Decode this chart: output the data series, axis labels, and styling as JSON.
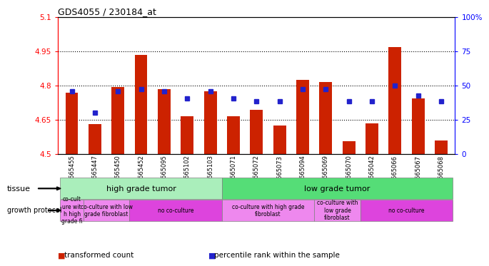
{
  "title": "GDS4055 / 230184_at",
  "samples": [
    "GSM665455",
    "GSM665447",
    "GSM665450",
    "GSM665452",
    "GSM665095",
    "GSM665102",
    "GSM665103",
    "GSM665071",
    "GSM665072",
    "GSM665073",
    "GSM665094",
    "GSM665069",
    "GSM665070",
    "GSM665042",
    "GSM665066",
    "GSM665067",
    "GSM665068"
  ],
  "bar_values": [
    4.77,
    4.63,
    4.795,
    4.935,
    4.785,
    4.665,
    4.775,
    4.665,
    4.695,
    4.625,
    4.825,
    4.815,
    4.555,
    4.635,
    4.97,
    4.745,
    4.56
  ],
  "blue_values": [
    4.775,
    4.68,
    4.775,
    4.785,
    4.775,
    4.745,
    4.775,
    4.745,
    4.73,
    4.73,
    4.785,
    4.785,
    4.73,
    4.73,
    4.8,
    4.755,
    4.73
  ],
  "ymin": 4.5,
  "ymax": 5.1,
  "yticks_left": [
    4.5,
    4.65,
    4.8,
    4.95,
    5.1
  ],
  "yticks_right": [
    0,
    25,
    50,
    75,
    100
  ],
  "bar_color": "#cc2200",
  "blue_color": "#2222cc",
  "tissue_groups": [
    {
      "label": "high grade tumor",
      "start": 0,
      "end": 7,
      "color": "#aaeebb"
    },
    {
      "label": "low grade tumor",
      "start": 7,
      "end": 17,
      "color": "#55dd77"
    }
  ],
  "growth_groups": [
    {
      "label": "co-cult\nure wit\nh high\ngrade fi",
      "start": 0,
      "end": 1,
      "color": "#ee88ee"
    },
    {
      "label": "co-culture with low\ngrade fibroblast",
      "start": 1,
      "end": 3,
      "color": "#ee88ee"
    },
    {
      "label": "no co-culture",
      "start": 3,
      "end": 7,
      "color": "#dd44dd"
    },
    {
      "label": "co-culture with high grade\nfibroblast",
      "start": 7,
      "end": 11,
      "color": "#ee88ee"
    },
    {
      "label": "co-culture with\nlow grade\nfibroblast",
      "start": 11,
      "end": 13,
      "color": "#ee88ee"
    },
    {
      "label": "no co-culture",
      "start": 13,
      "end": 17,
      "color": "#dd44dd"
    }
  ],
  "legend_items": [
    {
      "color": "#cc2200",
      "label": "transformed count"
    },
    {
      "color": "#2222cc",
      "label": "percentile rank within the sample"
    }
  ]
}
